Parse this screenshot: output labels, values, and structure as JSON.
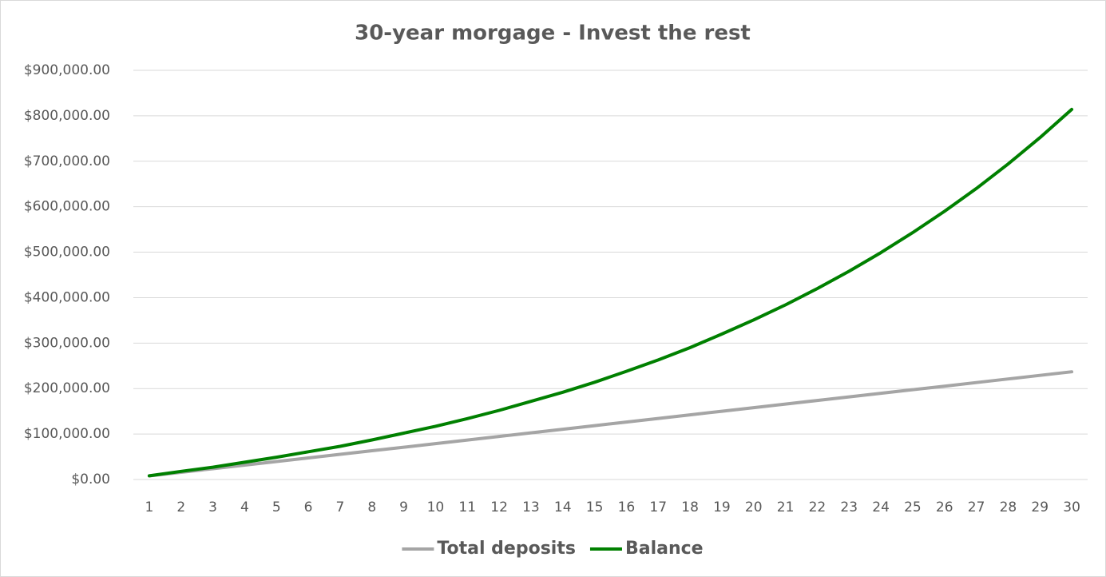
{
  "chart_data": {
    "type": "line",
    "title": "30-year morgage - Invest the rest",
    "categories": [
      "1",
      "2",
      "3",
      "4",
      "5",
      "6",
      "7",
      "8",
      "9",
      "10",
      "11",
      "12",
      "13",
      "14",
      "15",
      "16",
      "17",
      "18",
      "19",
      "20",
      "21",
      "22",
      "23",
      "24",
      "25",
      "26",
      "27",
      "28",
      "29",
      "30"
    ],
    "series": [
      {
        "name": "Total deposits",
        "color": "#a5a5a5",
        "values": [
          7900,
          15800,
          23700,
          31600,
          39500,
          47400,
          55300,
          63200,
          71100,
          79000,
          86900,
          94800,
          102700,
          110600,
          118500,
          126400,
          134300,
          142200,
          150100,
          158000,
          165900,
          173800,
          181700,
          189600,
          197500,
          205400,
          213300,
          221200,
          229100,
          237000
        ]
      },
      {
        "name": "Balance",
        "color": "#008000",
        "values": [
          8000,
          18000,
          27000,
          38000,
          49000,
          61000,
          73000,
          87000,
          102000,
          117000,
          134000,
          152000,
          172000,
          192000,
          214000,
          238000,
          263000,
          290000,
          320000,
          351000,
          384000,
          420000,
          458000,
          499000,
          543000,
          590000,
          640000,
          694000,
          752000,
          814000
        ]
      }
    ],
    "ylim": [
      0,
      900000
    ],
    "yticks": [
      {
        "value": 0,
        "label": "$0.00"
      },
      {
        "value": 100000,
        "label": "$100,000.00"
      },
      {
        "value": 200000,
        "label": "$200,000.00"
      },
      {
        "value": 300000,
        "label": "$300,000.00"
      },
      {
        "value": 400000,
        "label": "$400,000.00"
      },
      {
        "value": 500000,
        "label": "$500,000.00"
      },
      {
        "value": 600000,
        "label": "$600,000.00"
      },
      {
        "value": 700000,
        "label": "$700,000.00"
      },
      {
        "value": 800000,
        "label": "$800,000.00"
      },
      {
        "value": 900000,
        "label": "$900,000.00"
      }
    ],
    "grid": true,
    "legend": "bottom"
  }
}
